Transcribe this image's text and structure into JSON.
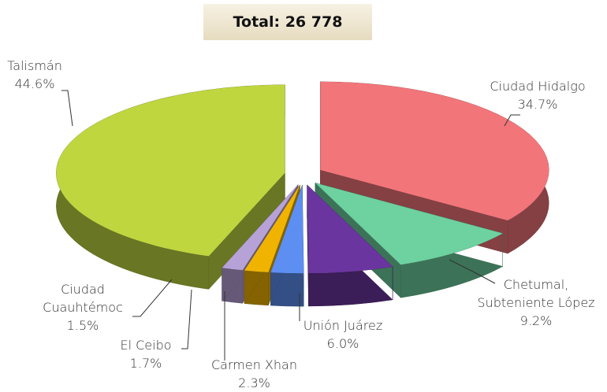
{
  "chart_data": {
    "type": "pie3d",
    "annotation": "Total: 26 778",
    "categories": [
      "Ciudad Hidalgo",
      "Chetumal, Subteniente López",
      "Unión Juárez",
      "Carmen Xhan",
      "El Ceibo",
      "Ciudad Cuauhtémoc",
      "Talismán"
    ],
    "values": [
      34.7,
      9.2,
      6.0,
      2.3,
      1.7,
      1.5,
      44.6
    ],
    "value_labels": [
      "34.7%",
      "9.2%",
      "6.0%",
      "2.3%",
      "1.7%",
      "1.5%",
      "44.6%"
    ],
    "colors": [
      "#f2757a",
      "#6dd1a0",
      "#6b35a0",
      "#5d8ff2",
      "#f0b400",
      "#b7a2d8",
      "#bfd63f"
    ]
  }
}
